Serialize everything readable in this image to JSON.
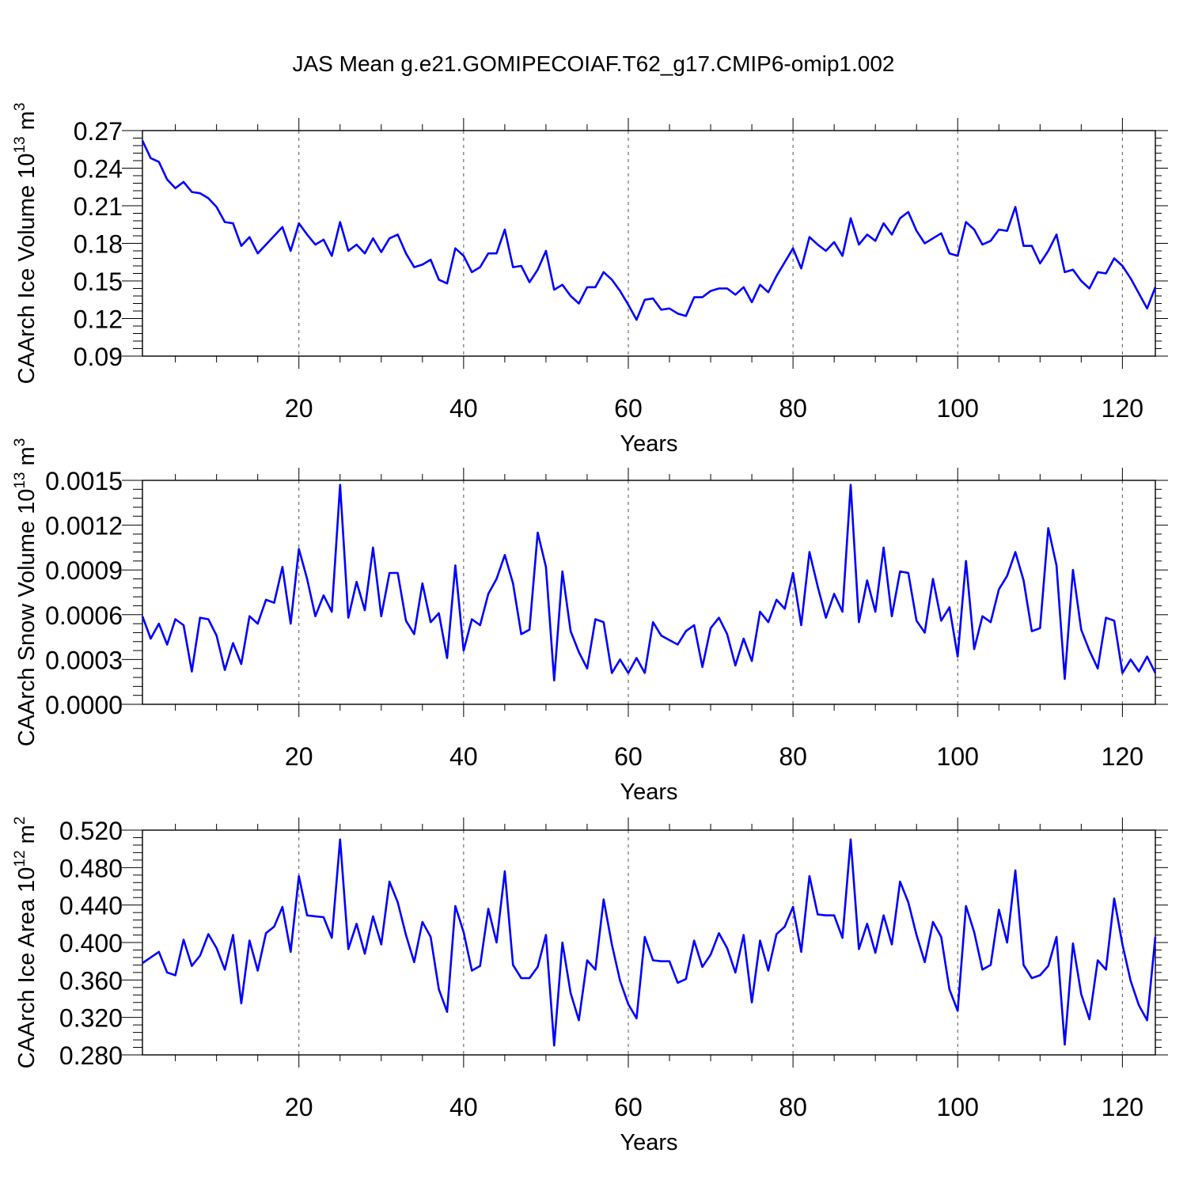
{
  "title": "JAS Mean g.e21.GOMIPECOIAF.T62_g17.CMIP6-omip1.002",
  "colors": {
    "series": "#0000ff",
    "axes": "#000000",
    "grid": "#555555",
    "background": "#ffffff"
  },
  "chart_data": [
    {
      "type": "line",
      "title": "",
      "xlabel": "Years",
      "ylabel": "CAArch Ice Volume 10",
      "ylabel_exp": "13",
      "ylabel_unit": " m",
      "ylabel_unit_exp": "3",
      "xlim": [
        1,
        124
      ],
      "ylim": [
        0.09,
        0.27
      ],
      "xticks": [
        20,
        40,
        60,
        80,
        100,
        120
      ],
      "xtick_labels": [
        "20",
        "40",
        "60",
        "80",
        "100",
        "120"
      ],
      "yticks": [
        0.09,
        0.12,
        0.15,
        0.18,
        0.21,
        0.24,
        0.27
      ],
      "ytick_labels": [
        "0.09",
        "0.12",
        "0.15",
        "0.18",
        "0.21",
        "0.24",
        "0.27"
      ],
      "grid_x": true,
      "series": [
        {
          "name": "CAArch Ice Volume",
          "values": [
            0.262,
            0.248,
            0.245,
            0.231,
            0.224,
            0.229,
            0.221,
            0.22,
            0.216,
            0.209,
            0.197,
            0.196,
            0.178,
            0.185,
            0.172,
            0.179,
            0.186,
            0.193,
            0.174,
            0.196,
            0.187,
            0.179,
            0.183,
            0.17,
            0.197,
            0.174,
            0.179,
            0.172,
            0.184,
            0.173,
            0.184,
            0.187,
            0.172,
            0.161,
            0.163,
            0.167,
            0.151,
            0.148,
            0.176,
            0.17,
            0.157,
            0.161,
            0.172,
            0.172,
            0.191,
            0.161,
            0.162,
            0.149,
            0.159,
            0.174,
            0.143,
            0.147,
            0.138,
            0.132,
            0.145,
            0.145,
            0.157,
            0.151,
            0.142,
            0.131,
            0.119,
            0.135,
            0.136,
            0.127,
            0.128,
            0.124,
            0.122,
            0.137,
            0.137,
            0.142,
            0.144,
            0.144,
            0.139,
            0.145,
            0.133,
            0.147,
            0.141,
            0.154,
            0.165,
            0.176,
            0.16,
            0.185,
            0.179,
            0.174,
            0.181,
            0.17,
            0.2,
            0.179,
            0.187,
            0.182,
            0.196,
            0.187,
            0.2,
            0.205,
            0.19,
            0.18,
            0.184,
            0.188,
            0.172,
            0.17,
            0.197,
            0.191,
            0.179,
            0.182,
            0.191,
            0.19,
            0.209,
            0.178,
            0.178,
            0.164,
            0.174,
            0.187,
            0.157,
            0.159,
            0.15,
            0.144,
            0.157,
            0.156,
            0.168,
            0.162,
            0.152,
            0.14,
            0.128,
            0.145
          ]
        }
      ]
    },
    {
      "type": "line",
      "title": "",
      "xlabel": "Years",
      "ylabel": "CAArch Snow Volume 10",
      "ylabel_exp": "13",
      "ylabel_unit": " m",
      "ylabel_unit_exp": "3",
      "xlim": [
        1,
        124
      ],
      "ylim": [
        0,
        0.0015
      ],
      "xticks": [
        20,
        40,
        60,
        80,
        100,
        120
      ],
      "xtick_labels": [
        "20",
        "40",
        "60",
        "80",
        "100",
        "120"
      ],
      "yticks": [
        0,
        0.0003,
        0.0006,
        0.0009,
        0.0012,
        0.0015
      ],
      "ytick_labels": [
        "0.0000",
        "0.0003",
        "0.0006",
        "0.0009",
        "0.0012",
        "0.0015"
      ],
      "grid_x": true,
      "series": [
        {
          "name": "CAArch Snow Volume",
          "values": [
            0.00059,
            0.00044,
            0.00054,
            0.0004,
            0.00057,
            0.00053,
            0.00022,
            0.00058,
            0.00057,
            0.00046,
            0.00023,
            0.00041,
            0.00027,
            0.00059,
            0.00054,
            0.0007,
            0.00068,
            0.00092,
            0.00054,
            0.00104,
            0.00084,
            0.00059,
            0.00073,
            0.00062,
            0.00147,
            0.00058,
            0.00082,
            0.00063,
            0.00105,
            0.00059,
            0.00088,
            0.00088,
            0.00056,
            0.00047,
            0.00081,
            0.00055,
            0.00061,
            0.00031,
            0.00093,
            0.00036,
            0.00057,
            0.00053,
            0.00074,
            0.00084,
            0.001,
            0.00081,
            0.00047,
            0.0005,
            0.00115,
            0.00092,
            0.00016,
            0.00089,
            0.00049,
            0.00035,
            0.00024,
            0.00057,
            0.00055,
            0.00021,
            0.0003,
            0.00021,
            0.00031,
            0.00021,
            0.00055,
            0.00046,
            0.00043,
            0.0004,
            0.00049,
            0.00053,
            0.00025,
            0.00051,
            0.00058,
            0.00047,
            0.00026,
            0.00044,
            0.00029,
            0.00062,
            0.00055,
            0.0007,
            0.00064,
            0.00088,
            0.00053,
            0.00102,
            0.00079,
            0.00058,
            0.00074,
            0.00062,
            0.00147,
            0.00055,
            0.00083,
            0.00062,
            0.00105,
            0.00059,
            0.00089,
            0.00088,
            0.00056,
            0.00048,
            0.00084,
            0.00056,
            0.00065,
            0.00032,
            0.00096,
            0.00037,
            0.00059,
            0.00055,
            0.00077,
            0.00086,
            0.00102,
            0.00083,
            0.00049,
            0.00051,
            0.00118,
            0.00093,
            0.00017,
            0.0009,
            0.0005,
            0.00036,
            0.00024,
            0.00058,
            0.00056,
            0.00021,
            0.0003,
            0.00022,
            0.00032,
            0.00021
          ]
        }
      ]
    },
    {
      "type": "line",
      "title": "",
      "xlabel": "Years",
      "ylabel": "CAArch Ice Area 10",
      "ylabel_exp": "12",
      "ylabel_unit": " m",
      "ylabel_unit_exp": "2",
      "xlim": [
        1,
        124
      ],
      "ylim": [
        0.28,
        0.52
      ],
      "xticks": [
        20,
        40,
        60,
        80,
        100,
        120
      ],
      "xtick_labels": [
        "20",
        "40",
        "60",
        "80",
        "100",
        "120"
      ],
      "yticks": [
        0.28,
        0.32,
        0.36,
        0.4,
        0.44,
        0.48,
        0.52
      ],
      "ytick_labels": [
        "0.280",
        "0.320",
        "0.360",
        "0.400",
        "0.440",
        "0.480",
        "0.520"
      ],
      "grid_x": true,
      "series": [
        {
          "name": "CAArch Ice Area",
          "values": [
            0.378,
            0.384,
            0.39,
            0.368,
            0.365,
            0.403,
            0.375,
            0.386,
            0.409,
            0.394,
            0.371,
            0.408,
            0.335,
            0.402,
            0.37,
            0.41,
            0.417,
            0.438,
            0.39,
            0.471,
            0.429,
            0.428,
            0.427,
            0.405,
            0.51,
            0.393,
            0.42,
            0.388,
            0.428,
            0.398,
            0.465,
            0.443,
            0.408,
            0.379,
            0.422,
            0.406,
            0.35,
            0.326,
            0.439,
            0.411,
            0.37,
            0.375,
            0.436,
            0.4,
            0.476,
            0.376,
            0.362,
            0.362,
            0.374,
            0.408,
            0.29,
            0.4,
            0.346,
            0.317,
            0.381,
            0.371,
            0.446,
            0.398,
            0.359,
            0.334,
            0.319,
            0.406,
            0.381,
            0.38,
            0.38,
            0.357,
            0.361,
            0.402,
            0.374,
            0.387,
            0.41,
            0.394,
            0.368,
            0.408,
            0.336,
            0.402,
            0.37,
            0.409,
            0.417,
            0.438,
            0.39,
            0.471,
            0.43,
            0.429,
            0.429,
            0.405,
            0.51,
            0.393,
            0.42,
            0.389,
            0.429,
            0.398,
            0.465,
            0.443,
            0.408,
            0.379,
            0.422,
            0.406,
            0.35,
            0.327,
            0.439,
            0.411,
            0.371,
            0.376,
            0.435,
            0.4,
            0.477,
            0.376,
            0.362,
            0.365,
            0.375,
            0.406,
            0.291,
            0.399,
            0.345,
            0.318,
            0.381,
            0.371,
            0.447,
            0.398,
            0.359,
            0.333,
            0.317,
            0.406
          ]
        }
      ]
    }
  ]
}
